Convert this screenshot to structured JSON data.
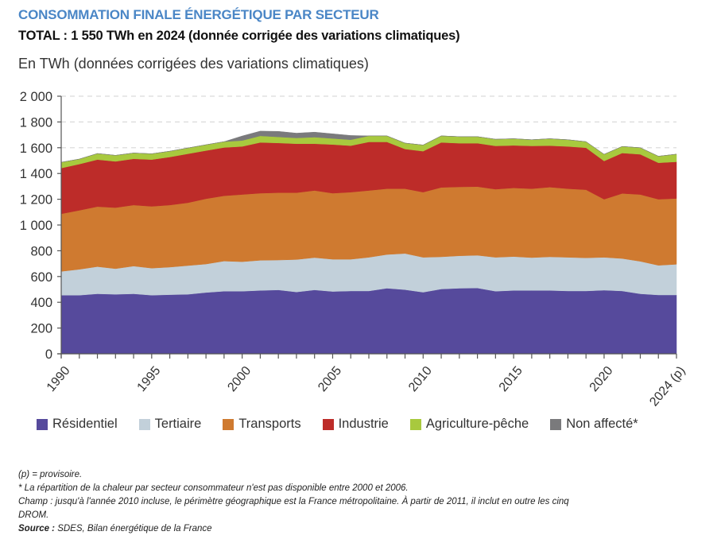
{
  "header": {
    "title": "CONSOMMATION FINALE ÉNERGÉTIQUE PAR SECTEUR",
    "subtitle": "TOTAL : 1 550 TWh en 2024 (donnée corrigée des variations climatiques)",
    "unit_label": "En TWh (données corrigées des variations climatiques)"
  },
  "chart_data": {
    "type": "area",
    "stacked": true,
    "title": "CONSOMMATION FINALE ÉNERGÉTIQUE PAR SECTEUR",
    "ylabel": "En TWh (données corrigées des variations climatiques)",
    "xlabel": "",
    "ylim": [
      0,
      2000
    ],
    "yticks": [
      0,
      200,
      400,
      600,
      800,
      1000,
      1200,
      1400,
      1600,
      1800,
      2000
    ],
    "ytick_labels": [
      "0",
      "200",
      "400",
      "600",
      "800",
      "1 000",
      "1 200",
      "1 400",
      "1 600",
      "1 800",
      "2 000"
    ],
    "x": [
      1990,
      1991,
      1992,
      1993,
      1994,
      1995,
      1996,
      1997,
      1998,
      1999,
      2000,
      2001,
      2002,
      2003,
      2004,
      2005,
      2006,
      2007,
      2008,
      2009,
      2010,
      2011,
      2012,
      2013,
      2014,
      2015,
      2016,
      2017,
      2018,
      2019,
      2020,
      2021,
      2022,
      2023,
      2024
    ],
    "xtick_labels": [
      {
        "year": 1990,
        "label": "1990"
      },
      {
        "year": 1995,
        "label": "1995"
      },
      {
        "year": 2000,
        "label": "2000"
      },
      {
        "year": 2005,
        "label": "2005"
      },
      {
        "year": 2010,
        "label": "2010"
      },
      {
        "year": 2015,
        "label": "2015"
      },
      {
        "year": 2020,
        "label": "2020"
      },
      {
        "year": 2024,
        "label": "2024 (p)"
      }
    ],
    "grid": "horizontal-dashed",
    "legend_position": "bottom",
    "series": [
      {
        "name": "Résidentiel",
        "color": "#564a9c",
        "values": [
          455,
          455,
          466,
          462,
          466,
          455,
          459,
          462,
          476,
          486,
          486,
          492,
          496,
          480,
          496,
          484,
          488,
          488,
          509,
          498,
          478,
          503,
          509,
          511,
          486,
          492,
          492,
          492,
          488,
          488,
          494,
          488,
          466,
          457,
          457
        ]
      },
      {
        "name": "Tertiaire",
        "color": "#c2d0da",
        "values": [
          185,
          201,
          211,
          199,
          215,
          210,
          214,
          223,
          221,
          234,
          229,
          234,
          232,
          252,
          251,
          250,
          246,
          261,
          262,
          281,
          271,
          250,
          252,
          254,
          263,
          263,
          255,
          261,
          261,
          257,
          255,
          252,
          252,
          230,
          238
        ]
      },
      {
        "name": "Transports",
        "color": "#cf7a30",
        "values": [
          447,
          458,
          466,
          474,
          474,
          480,
          482,
          488,
          507,
          507,
          522,
          521,
          523,
          519,
          521,
          513,
          521,
          519,
          511,
          503,
          506,
          539,
          535,
          533,
          529,
          533,
          535,
          541,
          533,
          529,
          451,
          505,
          519,
          513,
          511
        ]
      },
      {
        "name": "Industrie",
        "color": "#bd2c29",
        "values": [
          355,
          359,
          365,
          359,
          359,
          363,
          373,
          380,
          374,
          375,
          373,
          394,
          386,
          380,
          363,
          378,
          361,
          377,
          363,
          308,
          318,
          349,
          339,
          337,
          336,
          330,
          332,
          322,
          328,
          326,
          297,
          314,
          312,
          283,
          285
        ]
      },
      {
        "name": "Agriculture-pêche",
        "color": "#a8c93e",
        "values": [
          45,
          39,
          47,
          47,
          45,
          45,
          45,
          45,
          45,
          45,
          46,
          51,
          47,
          45,
          51,
          47,
          46,
          47,
          47,
          46,
          48,
          51,
          51,
          51,
          52,
          52,
          48,
          54,
          52,
          47,
          52,
          51,
          51,
          51,
          59
        ]
      },
      {
        "name": "Non affecté*",
        "color": "#7a7a7c",
        "values": [
          0,
          0,
          0,
          0,
          0,
          0,
          0,
          0,
          0,
          0,
          35,
          37,
          43,
          37,
          39,
          36,
          33,
          0,
          0,
          0,
          0,
          0,
          0,
          0,
          0,
          0,
          0,
          0,
          0,
          0,
          0,
          0,
          0,
          0,
          0
        ]
      }
    ]
  },
  "notes": {
    "provisional": "(p) = provisoire.",
    "footnote": "* La répartition de la chaleur par secteur consommateur n'est pas disponible entre 2000 et 2006.",
    "scope": "Champ : jusqu'à l'année 2010 incluse, le périmètre géographique est la France métropolitaine. À partir de 2011, il inclut en outre les cinq",
    "scope_cont": "DROM.",
    "source_label": "Source :",
    "source_text": " SDES, Bilan énergétique de la France"
  }
}
